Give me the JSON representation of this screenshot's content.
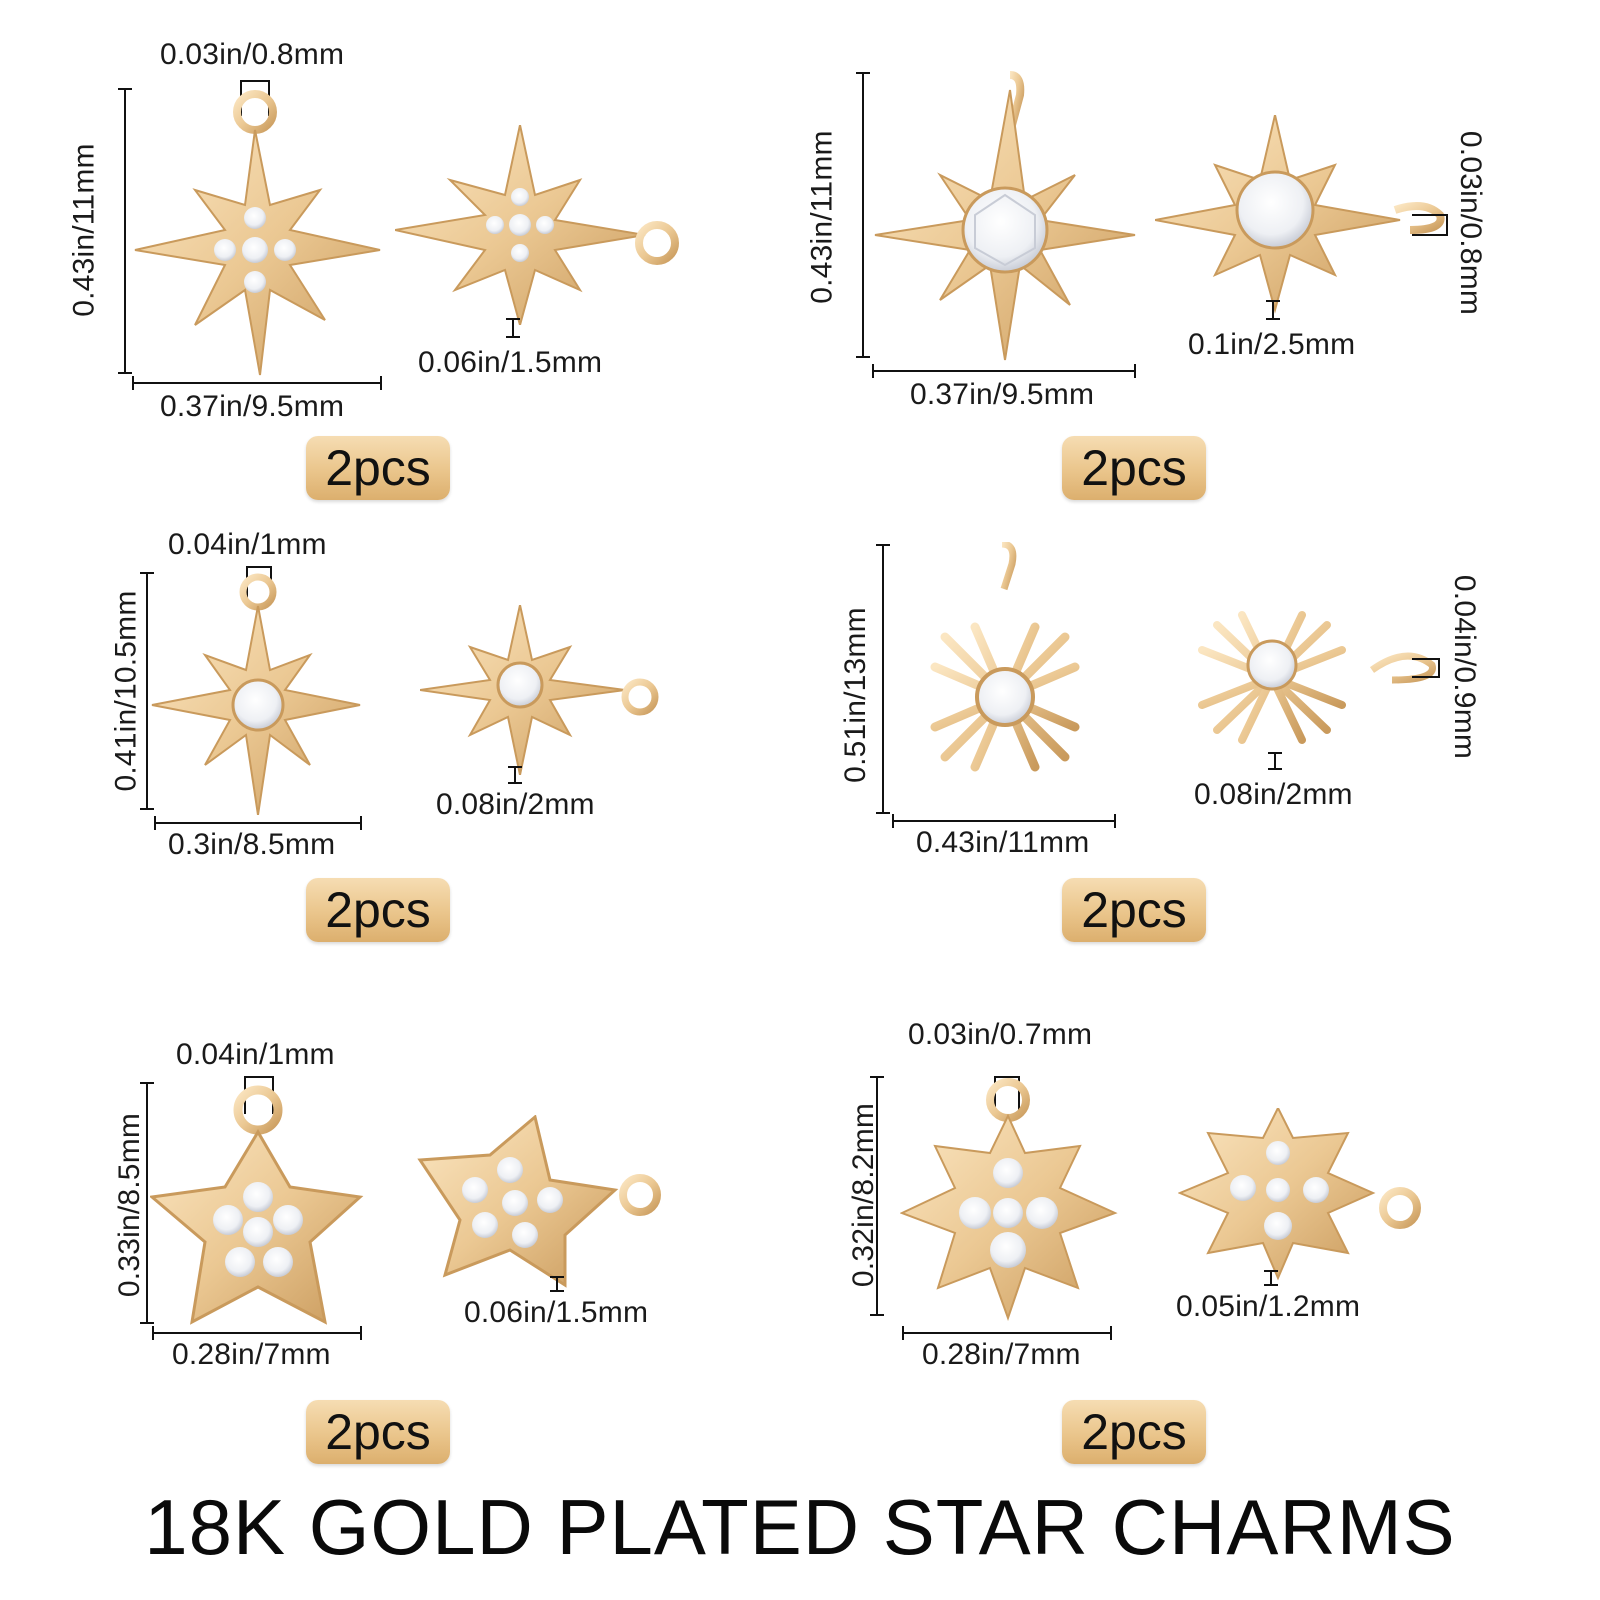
{
  "title": "18K GOLD PLATED STAR CHARMS",
  "colors": {
    "gold_light": "#f6ddb3",
    "gold": "#e8c48e",
    "gold_dark": "#c99c5e",
    "stone": "#f4f4f6",
    "text": "#111111"
  },
  "cells": [
    {
      "quantity": "2pcs",
      "hole": "0.03in/0.8mm",
      "height": "0.43in/11mm",
      "width": "0.37in/9.5mm",
      "thickness": "0.06in/1.5mm"
    },
    {
      "quantity": "2pcs",
      "hole": "0.03in/0.8mm",
      "height": "0.43in/11mm",
      "width": "0.37in/9.5mm",
      "thickness": "0.1in/2.5mm"
    },
    {
      "quantity": "2pcs",
      "hole": "0.04in/1mm",
      "height": "0.41in/10.5mm",
      "width": "0.3in/8.5mm",
      "thickness": "0.08in/2mm"
    },
    {
      "quantity": "2pcs",
      "hole": "0.04in/0.9mm",
      "height": "0.51in/13mm",
      "width": "0.43in/11mm",
      "thickness": "0.08in/2mm"
    },
    {
      "quantity": "2pcs",
      "hole": "0.04in/1mm",
      "height": "0.33in/8.5mm",
      "width": "0.28in/7mm",
      "thickness": "0.06in/1.5mm"
    },
    {
      "quantity": "2pcs",
      "hole": "0.03in/0.7mm",
      "height": "0.32in/8.2mm",
      "width": "0.28in/7mm",
      "thickness": "0.05in/1.2mm"
    }
  ]
}
